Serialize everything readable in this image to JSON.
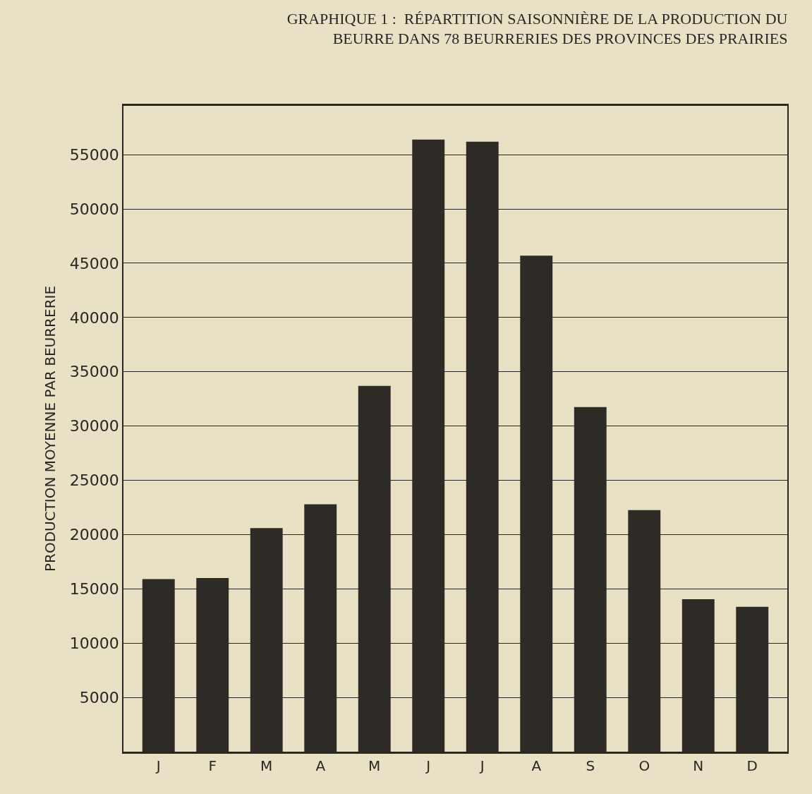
{
  "chart_data": {
    "type": "bar",
    "title": "GRAPHIQUE 1 :  RÉPARTITION SAISONNIÈRE DE LA PRODUCTION DU\nBEURRE DANS 78 BEURRERIES DES PROVINCES DES PRAIRIES",
    "ylabel": "PRODUCTION MOYENNE PAR BEURRERIE",
    "categories": [
      "J",
      "F",
      "M",
      "A",
      "M",
      "J",
      "J",
      "A",
      "S",
      "O",
      "N",
      "D"
    ],
    "values": [
      15900,
      16000,
      20600,
      22800,
      33700,
      56400,
      56200,
      45700,
      31750,
      22250,
      14050,
      13350
    ],
    "color": "#2e2a26",
    "ylim": [
      0,
      59500
    ],
    "yticks": [
      5000,
      10000,
      15000,
      20000,
      25000,
      30000,
      35000,
      40000,
      45000,
      50000,
      55000
    ],
    "grid": "y"
  }
}
